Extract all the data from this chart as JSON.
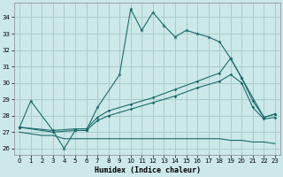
{
  "xlabel": "Humidex (Indice chaleur)",
  "background_color": "#cce8e8",
  "grid_color": "#aacccc",
  "line_color": "#1a6b6b",
  "x_ticks": [
    0,
    1,
    2,
    3,
    4,
    5,
    6,
    7,
    8,
    9,
    10,
    11,
    12,
    13,
    14,
    15,
    16,
    17,
    18,
    19,
    20,
    21,
    22,
    23
  ],
  "y_ticks": [
    26,
    27,
    28,
    29,
    30,
    31,
    32,
    33,
    34
  ],
  "ylim": [
    25.6,
    34.9
  ],
  "xlim": [
    -0.5,
    23.5
  ],
  "line_spiky": {
    "x": [
      0,
      1,
      3,
      4,
      5,
      6,
      7,
      9,
      10,
      11,
      12,
      13,
      14,
      15,
      16,
      17,
      18,
      19,
      20,
      22,
      23
    ],
    "y": [
      27.3,
      28.9,
      27.1,
      26.0,
      27.1,
      27.1,
      28.5,
      30.5,
      34.5,
      33.2,
      34.3,
      33.5,
      32.8,
      33.2,
      33.0,
      32.8,
      32.5,
      31.5,
      30.3,
      27.9,
      28.1
    ]
  },
  "line_smooth_upper": {
    "x": [
      0,
      3,
      5,
      6,
      7,
      8,
      10,
      12,
      14,
      16,
      18,
      19,
      20,
      21,
      22,
      23
    ],
    "y": [
      27.3,
      27.1,
      27.2,
      27.2,
      27.9,
      28.3,
      28.7,
      29.1,
      29.6,
      30.1,
      30.6,
      31.5,
      30.3,
      28.9,
      27.9,
      28.1
    ]
  },
  "line_smooth_lower": {
    "x": [
      0,
      3,
      5,
      6,
      7,
      8,
      10,
      12,
      14,
      16,
      18,
      19,
      20,
      21,
      22,
      23
    ],
    "y": [
      27.3,
      27.0,
      27.1,
      27.1,
      27.7,
      28.0,
      28.4,
      28.8,
      29.2,
      29.7,
      30.1,
      30.5,
      30.0,
      28.5,
      27.8,
      27.9
    ]
  },
  "line_flat": {
    "x": [
      0,
      1,
      2,
      3,
      4,
      5,
      6,
      7,
      8,
      9,
      10,
      11,
      12,
      13,
      14,
      15,
      16,
      17,
      18,
      19,
      20,
      21,
      22,
      23
    ],
    "y": [
      27.0,
      26.9,
      26.8,
      26.8,
      26.6,
      26.6,
      26.6,
      26.6,
      26.6,
      26.6,
      26.6,
      26.6,
      26.6,
      26.6,
      26.6,
      26.6,
      26.6,
      26.6,
      26.6,
      26.5,
      26.5,
      26.4,
      26.4,
      26.3
    ]
  }
}
